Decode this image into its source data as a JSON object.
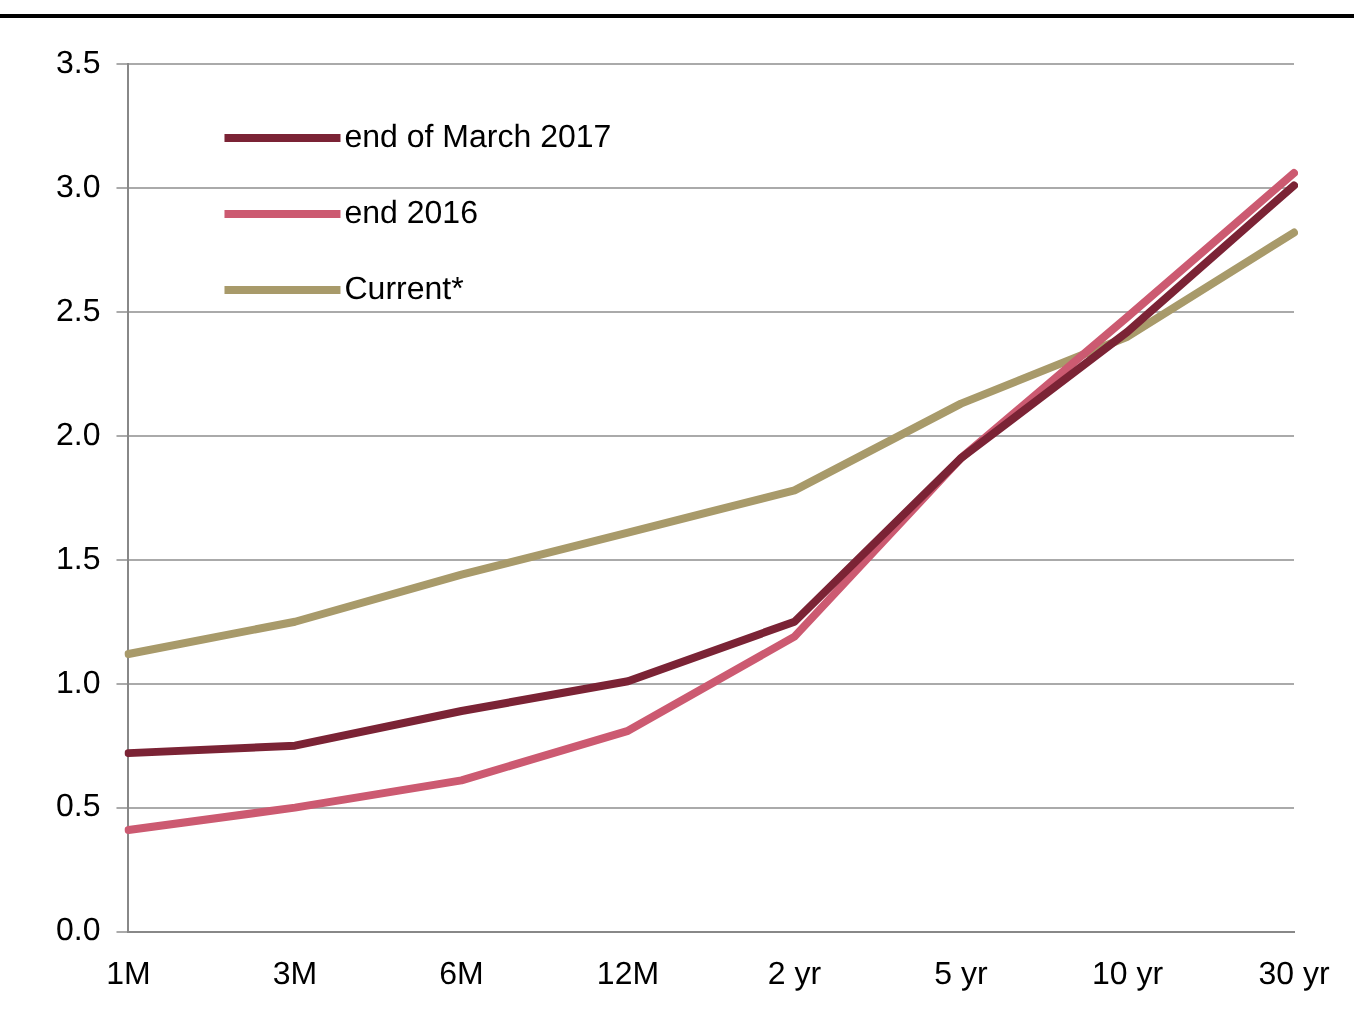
{
  "chart_data": {
    "type": "line",
    "categories": [
      "1M",
      "3M",
      "6M",
      "12M",
      "2 yr",
      "5 yr",
      "10 yr",
      "30 yr"
    ],
    "series": [
      {
        "name": "end of March 2017",
        "color": "#7b2335",
        "values": [
          0.72,
          0.75,
          0.89,
          1.01,
          1.25,
          1.91,
          2.42,
          3.01
        ]
      },
      {
        "name": "end 2016",
        "color": "#cc5a71",
        "values": [
          0.41,
          0.5,
          0.61,
          0.81,
          1.19,
          1.91,
          2.48,
          3.06
        ]
      },
      {
        "name": "Current*",
        "color": "#a89a6a",
        "values": [
          1.12,
          1.25,
          1.44,
          1.61,
          1.78,
          2.13,
          2.4,
          2.82
        ]
      }
    ],
    "ylim": [
      0,
      3.5
    ],
    "yticks": [
      {
        "value": 0,
        "label": "0.0"
      },
      {
        "value": 0.5,
        "label": "0.5"
      },
      {
        "value": 1,
        "label": "1.0"
      },
      {
        "value": 1.5,
        "label": "1.5"
      },
      {
        "value": 2,
        "label": "2.0"
      },
      {
        "value": 2.5,
        "label": "2.5"
      },
      {
        "value": 3,
        "label": "3.0"
      },
      {
        "value": 3.5,
        "label": "3.5"
      }
    ],
    "grid": "y",
    "legend": "top left",
    "marker": "none",
    "line_style": "solid"
  }
}
